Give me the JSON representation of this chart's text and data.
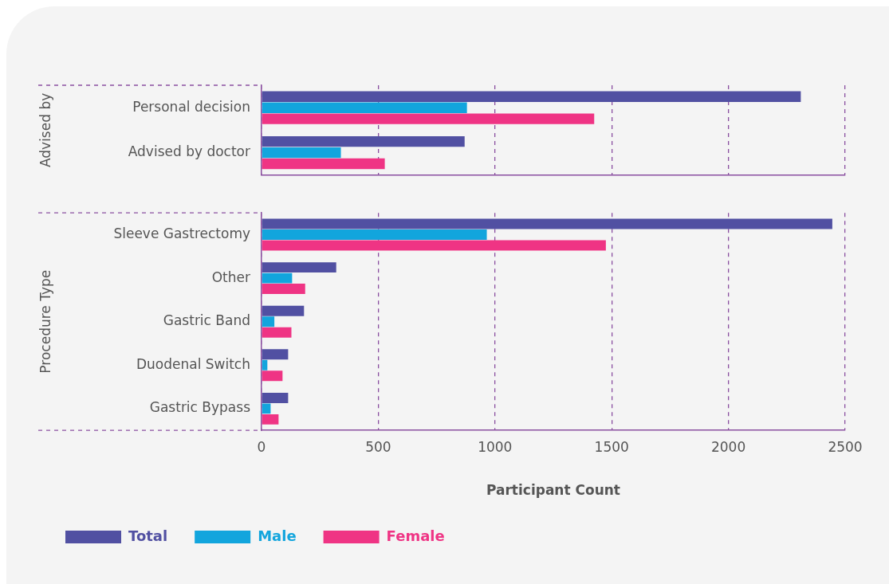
{
  "chart_data": [
    {
      "type": "bar",
      "orientation": "horizontal",
      "ylabel": "Advised by",
      "categories": [
        "Personal decision",
        "Advised by doctor"
      ],
      "series": [
        {
          "color": "#5150a2",
          "values": [
            2310,
            870
          ]
        },
        {
          "color": "#12a5dd",
          "values": [
            880,
            340
          ]
        },
        {
          "color": "#ef3484",
          "values": [
            1425,
            528
          ]
        }
      ],
      "xlim": [
        0,
        2500
      ],
      "xticks": [
        0,
        500,
        1000,
        1500,
        2000,
        2500
      ],
      "grid": "x",
      "tick_labels": "y"
    },
    {
      "type": "bar",
      "orientation": "horizontal",
      "ylabel": "Procedure Type",
      "xlabel": "Participant Count",
      "categories": [
        "Sleeve Gastrectomy",
        "Other",
        "Gastric Band",
        "Duodenal Switch",
        "Gastric Bypass"
      ],
      "series": [
        {
          "name": "Total",
          "color": "#5150a2",
          "values": [
            2445,
            320,
            182,
            114,
            114
          ]
        },
        {
          "name": "Male",
          "color": "#12a5dd",
          "values": [
            965,
            131,
            55,
            25,
            39
          ]
        },
        {
          "name": "Female",
          "color": "#ef3484",
          "values": [
            1475,
            187,
            128,
            90,
            73
          ]
        }
      ],
      "xlim": [
        0,
        2500
      ],
      "xticks": [
        0,
        500,
        1000,
        1500,
        2000,
        2500
      ],
      "grid": "x",
      "legend": "bottom left"
    }
  ]
}
